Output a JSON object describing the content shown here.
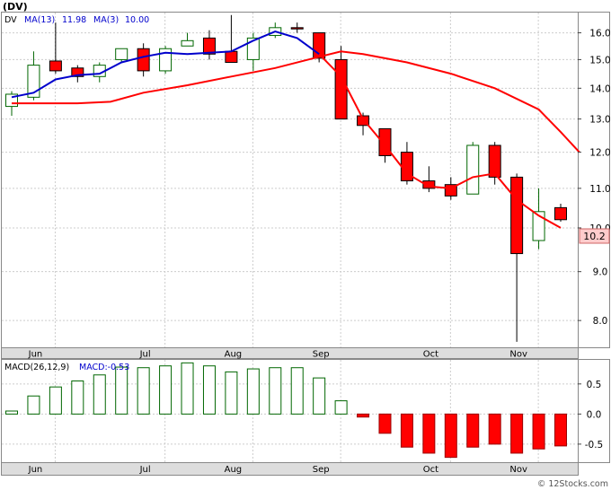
{
  "title": "(DV)",
  "legend": {
    "symbol": "DV",
    "ma_long_label": "MA(13)",
    "ma_long_value": "11.98",
    "ma_short_label": "MA(3)",
    "ma_short_value": "10.00",
    "macd_label": "MACD(26,12,9)",
    "macd_value_label": "MACD:-0.53"
  },
  "last_price_label": "10.2",
  "watermark": "© 12Stocks.com",
  "colors": {
    "up_outline": "#006600",
    "down_fill": "#ff0000",
    "ma_long": "#ff0000",
    "ma_short": "#0000cc",
    "macd_up": "#006600",
    "macd_down": "#ff0000",
    "grid": "#cccccc",
    "price_label_bg": "#ffcccc"
  },
  "chart_data": [
    {
      "type": "candlestick",
      "scale": "log",
      "grid": true,
      "ylim": [
        7.5,
        16.8
      ],
      "y_ticks": [
        "16.0",
        "15.0",
        "14.0",
        "13.0",
        "12.0",
        "11.0",
        "10.0",
        "9.0",
        "8.0"
      ],
      "x_labels": [
        "Jun",
        "Jul",
        "Aug",
        "Sep",
        "Oct",
        "Nov"
      ],
      "candles": [
        {
          "o": 13.4,
          "h": 13.9,
          "l": 13.1,
          "c": 13.8
        },
        {
          "o": 13.7,
          "h": 15.3,
          "l": 13.6,
          "c": 14.8
        },
        {
          "o": 14.95,
          "h": 16.4,
          "l": 14.5,
          "c": 14.6
        },
        {
          "o": 14.7,
          "h": 14.8,
          "l": 14.2,
          "c": 14.4
        },
        {
          "o": 14.4,
          "h": 14.9,
          "l": 14.2,
          "c": 14.8
        },
        {
          "o": 15.0,
          "h": 15.4,
          "l": 14.9,
          "c": 15.4
        },
        {
          "o": 15.4,
          "h": 15.6,
          "l": 14.4,
          "c": 14.6
        },
        {
          "o": 14.6,
          "h": 15.5,
          "l": 14.5,
          "c": 15.4
        },
        {
          "o": 15.5,
          "h": 16.0,
          "l": 15.5,
          "c": 15.7
        },
        {
          "o": 15.8,
          "h": 16.1,
          "l": 15.0,
          "c": 15.2
        },
        {
          "o": 15.3,
          "h": 16.7,
          "l": 14.9,
          "c": 14.9
        },
        {
          "o": 15.0,
          "h": 16.0,
          "l": 14.6,
          "c": 15.8
        },
        {
          "o": 15.9,
          "h": 16.4,
          "l": 15.8,
          "c": 16.2
        },
        {
          "o": 16.2,
          "h": 16.4,
          "l": 16.0,
          "c": 16.15
        },
        {
          "o": 16.0,
          "h": 16.0,
          "l": 14.9,
          "c": 15.05
        },
        {
          "o": 15.0,
          "h": 15.5,
          "l": 13.0,
          "c": 13.0
        },
        {
          "o": 13.1,
          "h": 13.2,
          "l": 12.5,
          "c": 12.8
        },
        {
          "o": 12.7,
          "h": 12.7,
          "l": 11.7,
          "c": 11.9
        },
        {
          "o": 12.0,
          "h": 12.3,
          "l": 11.1,
          "c": 11.2
        },
        {
          "o": 11.2,
          "h": 11.6,
          "l": 10.9,
          "c": 11.0
        },
        {
          "o": 11.1,
          "h": 11.3,
          "l": 10.7,
          "c": 10.8
        },
        {
          "o": 10.85,
          "h": 12.3,
          "l": 10.85,
          "c": 12.2
        },
        {
          "o": 12.2,
          "h": 12.3,
          "l": 11.1,
          "c": 11.3
        },
        {
          "o": 11.3,
          "h": 11.4,
          "l": 7.6,
          "c": 9.4
        },
        {
          "o": 9.7,
          "h": 11.0,
          "l": 9.5,
          "c": 10.4
        },
        {
          "o": 10.5,
          "h": 10.6,
          "l": 10.15,
          "c": 10.2
        }
      ],
      "ma13": [
        [
          0,
          13.5
        ],
        [
          3,
          13.5
        ],
        [
          4.5,
          13.55
        ],
        [
          6,
          13.85
        ],
        [
          8,
          14.1
        ],
        [
          10,
          14.4
        ],
        [
          12,
          14.7
        ],
        [
          14,
          15.1
        ],
        [
          15,
          15.3
        ],
        [
          16,
          15.2
        ],
        [
          18,
          14.9
        ],
        [
          20,
          14.5
        ],
        [
          22,
          14.0
        ],
        [
          24,
          13.3
        ],
        [
          25,
          12.6
        ],
        [
          25.85,
          12.0
        ]
      ],
      "ma3": [
        [
          0,
          13.7
        ],
        [
          1,
          13.85
        ],
        [
          2,
          14.3
        ],
        [
          3,
          14.45
        ],
        [
          4,
          14.5
        ],
        [
          5,
          14.9
        ],
        [
          6,
          15.1
        ],
        [
          7,
          15.25
        ],
        [
          8,
          15.2
        ],
        [
          9,
          15.25
        ],
        [
          10,
          15.3
        ],
        [
          11,
          15.7
        ],
        [
          12,
          16.05
        ],
        [
          13,
          15.8
        ],
        [
          14,
          15.2
        ],
        [
          15,
          14.4
        ],
        [
          16,
          13.0
        ],
        [
          17,
          12.2
        ],
        [
          18,
          11.4
        ],
        [
          19,
          11.05
        ],
        [
          20,
          11.0
        ],
        [
          21,
          11.3
        ],
        [
          22,
          11.4
        ],
        [
          23,
          10.7
        ],
        [
          24,
          10.3
        ],
        [
          25,
          10.0
        ]
      ]
    },
    {
      "type": "bar",
      "title": "MACD(26,12,9)",
      "ylim": [
        -0.8,
        0.9
      ],
      "y_ticks": [
        "0.5",
        "0.0",
        "-0.5"
      ],
      "values": [
        0.05,
        0.3,
        0.45,
        0.55,
        0.65,
        0.78,
        0.77,
        0.8,
        0.85,
        0.8,
        0.7,
        0.75,
        0.77,
        0.77,
        0.6,
        0.22,
        -0.05,
        -0.32,
        -0.55,
        -0.65,
        -0.72,
        -0.55,
        -0.5,
        -0.65,
        -0.58,
        -0.53
      ]
    }
  ]
}
